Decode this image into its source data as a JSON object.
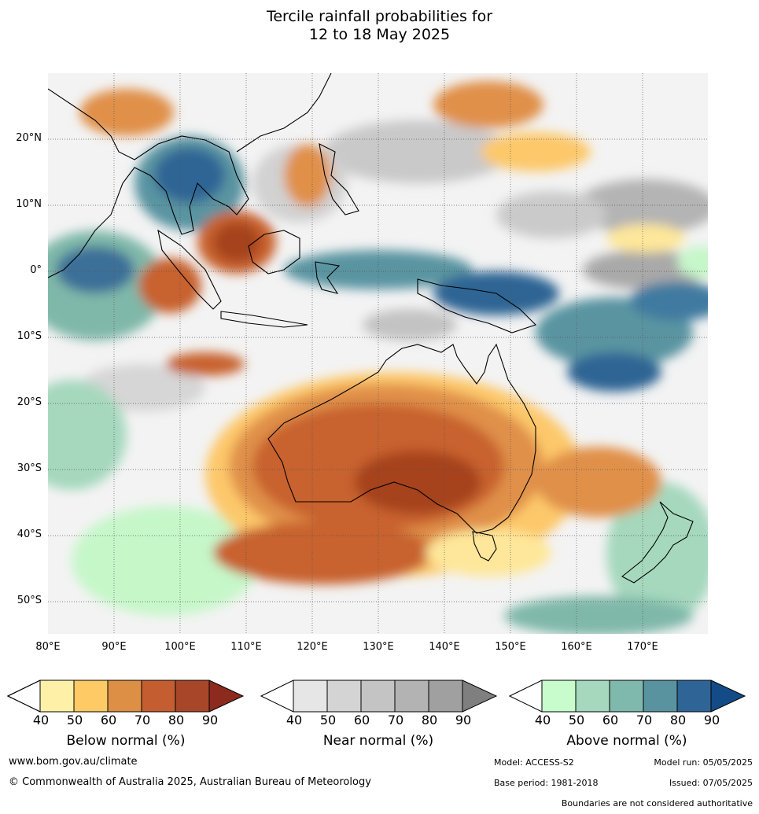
{
  "title": {
    "line1": "Tercile rainfall probabilities for",
    "line2": "12 to 18 May 2025"
  },
  "map": {
    "lat_labels": [
      "20°N",
      "10°N",
      "0°",
      "10°S",
      "20°S",
      "30°S",
      "40°S",
      "50°S"
    ],
    "lon_labels": [
      "80°E",
      "90°E",
      "100°E",
      "110°E",
      "120°E",
      "130°E",
      "140°E",
      "150°E",
      "160°E",
      "170°E"
    ],
    "colors": {
      "ocean_white": "#ffffff",
      "grey_light": "#e3e3e3",
      "grey_mid": "#c4c4c4",
      "grey_dark": "#9e9e9e",
      "yellow": "#fee79a",
      "orange": "#fdc86a",
      "orange_mid": "#e0904a",
      "brown_light": "#c8622e",
      "brown_dark": "#a6431f",
      "green_light": "#c6f7c9",
      "teal": "#7fb8a9",
      "teal_dark": "#5a94a1",
      "blue": "#2f6594",
      "coast": "#000000"
    }
  },
  "colorbars": [
    {
      "label": "Below normal (%)",
      "ticks": [
        "40",
        "50",
        "60",
        "70",
        "80",
        "90"
      ],
      "colors": [
        "#ffffff",
        "#fff0a8",
        "#fdca65",
        "#dc8f45",
        "#c45e30",
        "#a8462a",
        "#8b2a1d"
      ]
    },
    {
      "label": "Near normal (%)",
      "ticks": [
        "40",
        "50",
        "60",
        "70",
        "80",
        "90"
      ],
      "colors": [
        "#ffffff",
        "#e6e6e6",
        "#d4d4d4",
        "#c4c4c4",
        "#b3b3b3",
        "#a0a0a0",
        "#7f7f7f"
      ]
    },
    {
      "label": "Above normal (%)",
      "ticks": [
        "40",
        "50",
        "60",
        "70",
        "80",
        "90"
      ],
      "colors": [
        "#ffffff",
        "#c8fccc",
        "#a5d8bd",
        "#7fb9ad",
        "#5a93a0",
        "#2f6496",
        "#134b86"
      ]
    }
  ],
  "footer": {
    "website": "www.bom.gov.au/climate",
    "copyright": "© Commonwealth of Australia 2025, Australian Bureau of Meteorology",
    "model": "Model: ACCESS-S2",
    "model_run": "Model run: 05/05/2025",
    "base_period": "Base period: 1981-2018",
    "issued": "Issued: 07/05/2025",
    "disclaimer": "Boundaries are not considered authoritative"
  }
}
